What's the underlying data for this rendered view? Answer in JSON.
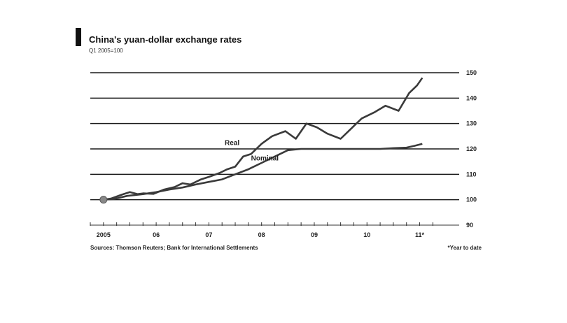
{
  "chart_data": {
    "type": "line",
    "title": "China's yuan-dollar exchange rates",
    "subtitle": "Q1 2005=100",
    "footnote_left": "Sources: Thomson Reuters; Bank for International Settlements",
    "footnote_right": "*Year to date",
    "y_ticks": [
      90,
      100,
      110,
      120,
      130,
      140,
      150
    ],
    "ylim": [
      90,
      150
    ],
    "x_ticks": [
      "2005",
      "06",
      "07",
      "08",
      "09",
      "10",
      "11*"
    ],
    "x_tick_positions": [
      2005.25,
      2006.25,
      2007.25,
      2008.25,
      2009.25,
      2010.25,
      2011.25
    ],
    "xlim": [
      2005.0,
      2012.0
    ],
    "grid": true,
    "colors": {
      "line": "#3a3a3a",
      "grid": "#1a1a1a",
      "title_bar": "#111111",
      "start_marker": "#888888"
    },
    "series": [
      {
        "name": "Real",
        "x": [
          2005.25,
          2005.4,
          2005.6,
          2005.75,
          2005.9,
          2006.0,
          2006.2,
          2006.4,
          2006.6,
          2006.75,
          2006.9,
          2007.1,
          2007.25,
          2007.45,
          2007.6,
          2007.75,
          2007.9,
          2008.05,
          2008.25,
          2008.45,
          2008.7,
          2008.9,
          2009.1,
          2009.3,
          2009.5,
          2009.75,
          2009.95,
          2010.15,
          2010.4,
          2010.6,
          2010.85,
          2011.05,
          2011.2,
          2011.3
        ],
        "y": [
          100,
          100.5,
          102,
          103,
          102.2,
          102.5,
          102.3,
          104,
          105,
          106.5,
          106,
          108,
          109,
          110.5,
          112,
          113,
          117,
          118,
          122,
          125,
          127,
          124,
          130,
          128.5,
          126,
          124,
          128,
          132,
          134.5,
          137,
          135,
          142,
          145,
          148
        ]
      },
      {
        "name": "Nominal",
        "x": [
          2005.25,
          2005.45,
          2005.7,
          2006.0,
          2006.25,
          2006.5,
          2006.75,
          2007.0,
          2007.25,
          2007.5,
          2007.75,
          2008.0,
          2008.25,
          2008.5,
          2008.75,
          2009.0,
          2009.25,
          2009.5,
          2009.75,
          2010.0,
          2010.25,
          2010.5,
          2010.75,
          2011.0,
          2011.15,
          2011.3
        ],
        "y": [
          100,
          100.3,
          101.5,
          102.2,
          103,
          104,
          104.8,
          106,
          107,
          108,
          110,
          112,
          114.5,
          117,
          119.5,
          120,
          120,
          120,
          120,
          120,
          120,
          120,
          120.3,
          120.5,
          121.2,
          122
        ]
      }
    ],
    "annotations": [
      {
        "text": "Real",
        "series": "Real"
      },
      {
        "text": "Nominal",
        "series": "Nominal"
      }
    ]
  }
}
